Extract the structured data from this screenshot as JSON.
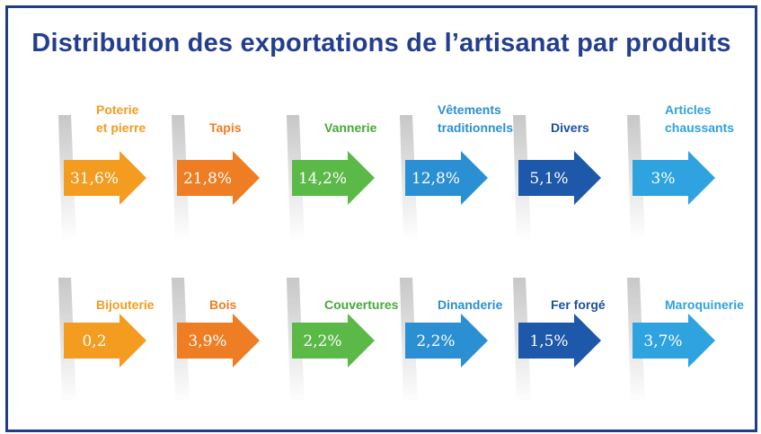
{
  "chart_data": {
    "type": "table",
    "title": "Distribution des exportations de l’artisanat par produits",
    "unit": "%",
    "items": [
      {
        "label_lines": [
          "Poterie",
          "et pierre"
        ],
        "value_label": "31,6%",
        "value": 31.6,
        "color": "#f39c1f",
        "label_color": "#f39c1f"
      },
      {
        "label_lines": [
          "Tapis"
        ],
        "value_label": "21,8%",
        "value": 21.8,
        "color": "#ee7d23",
        "label_color": "#ee7d23"
      },
      {
        "label_lines": [
          "Vannerie"
        ],
        "value_label": "14,2%",
        "value": 14.2,
        "color": "#5bb947",
        "label_color": "#47a83a"
      },
      {
        "label_lines": [
          "Vêtements",
          "traditionnels"
        ],
        "value_label": "12,8%",
        "value": 12.8,
        "color": "#2b8fd3",
        "label_color": "#2b8fd3"
      },
      {
        "label_lines": [
          "Divers"
        ],
        "value_label": "5,1%",
        "value": 5.1,
        "color": "#1d58aa",
        "label_color": "#1d4f9f"
      },
      {
        "label_lines": [
          "Articles",
          "chaussants"
        ],
        "value_label": "3%",
        "value": 3,
        "color": "#2ea3e0",
        "label_color": "#2ea3e0"
      },
      {
        "label_lines": [
          "Bijouterie"
        ],
        "value_label": "0,2",
        "value": 0.2,
        "color": "#f39c1f",
        "label_color": "#f39c1f"
      },
      {
        "label_lines": [
          "Bois"
        ],
        "value_label": "3,9%",
        "value": 3.9,
        "color": "#ee7d23",
        "label_color": "#ee7d23"
      },
      {
        "label_lines": [
          "Couvertures"
        ],
        "value_label": "2,2%",
        "value": 2.2,
        "color": "#5bb947",
        "label_color": "#47a83a"
      },
      {
        "label_lines": [
          "Dinanderie"
        ],
        "value_label": "2,2%",
        "value": 2.2,
        "color": "#2b8fd3",
        "label_color": "#2b8fd3"
      },
      {
        "label_lines": [
          "Fer forgé"
        ],
        "value_label": "1,5%",
        "value": 1.5,
        "color": "#1d58aa",
        "label_color": "#1d4f9f"
      },
      {
        "label_lines": [
          "Maroquinerie"
        ],
        "value_label": "3,7%",
        "value": 3.7,
        "color": "#2ea3e0",
        "label_color": "#2ea3e0"
      }
    ]
  }
}
